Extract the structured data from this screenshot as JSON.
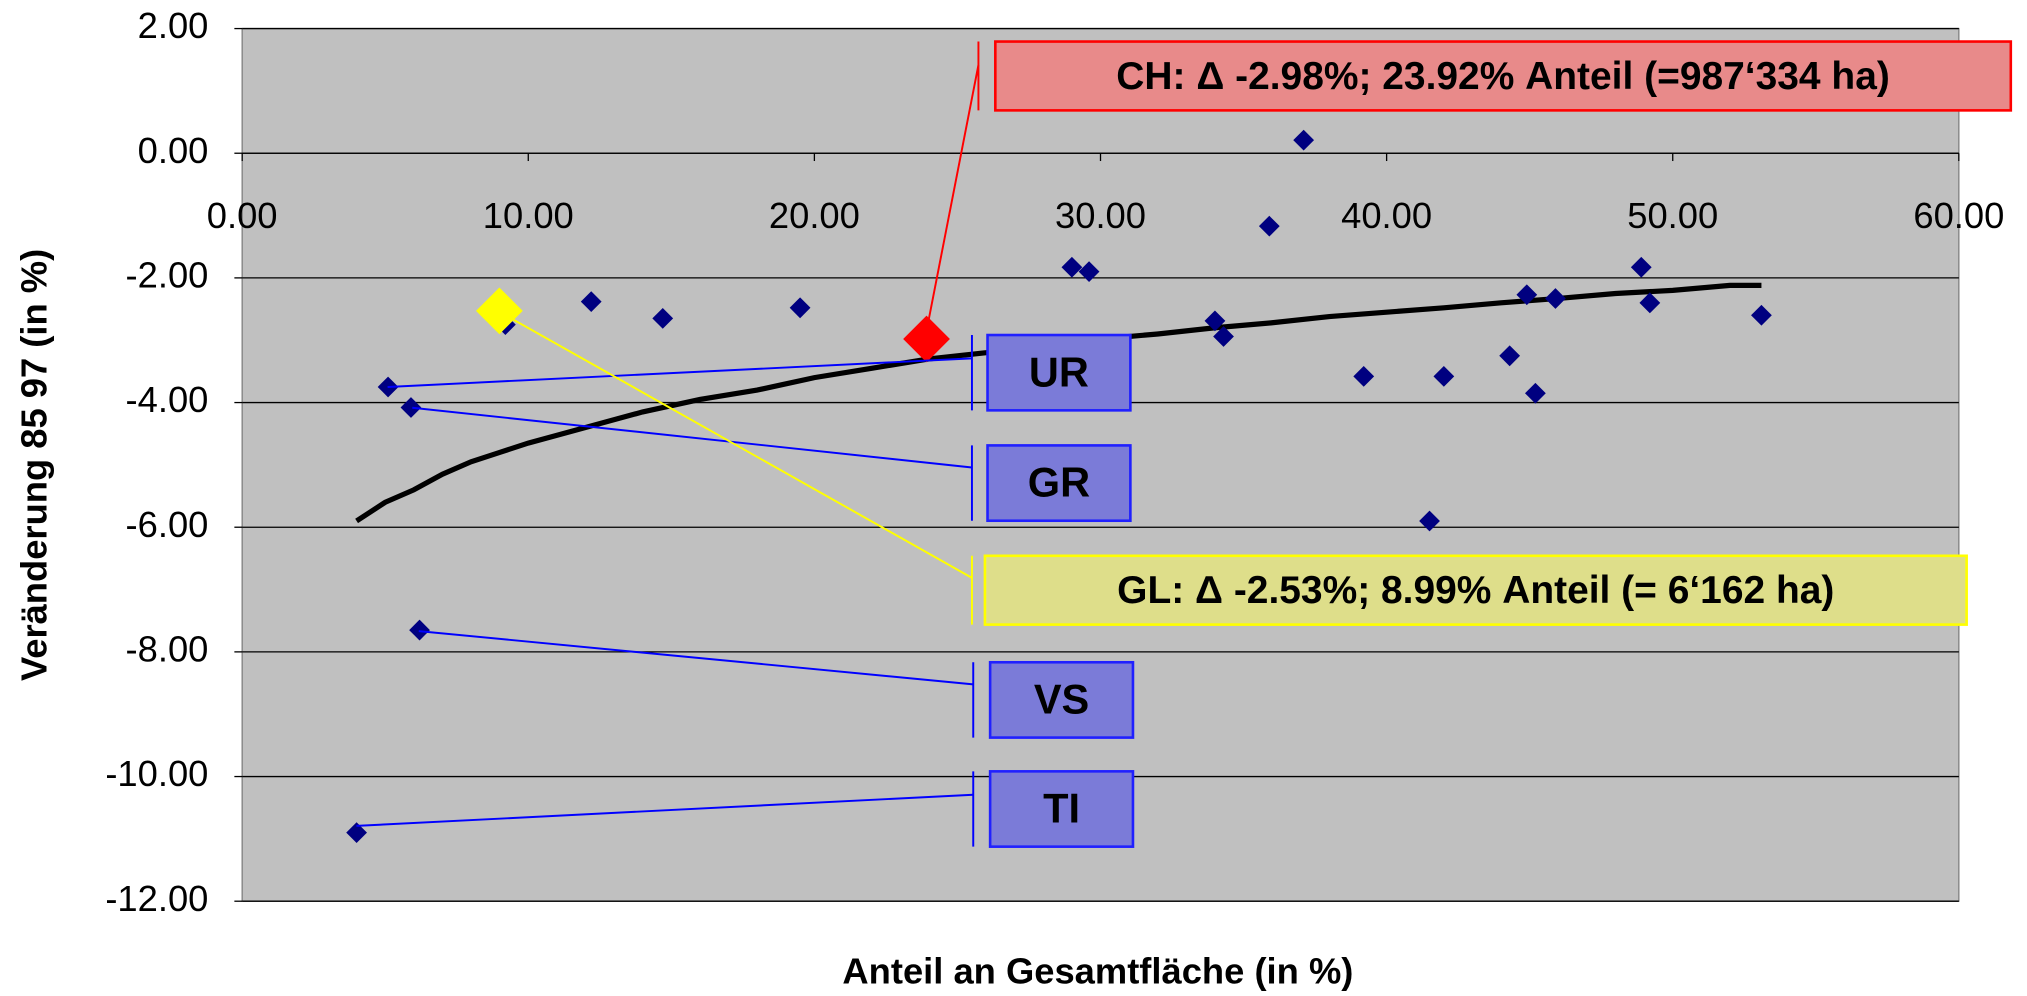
{
  "chart_data": {
    "type": "scatter",
    "x_label": "Anteil an Gesamtfläche (in %)",
    "y_label": "Veränderung 85 97 (in %)",
    "xlim": [
      0,
      60
    ],
    "ylim": [
      -12,
      2
    ],
    "xticks": [
      {
        "value": 0,
        "label": "0.00"
      },
      {
        "value": 10,
        "label": "10.00"
      },
      {
        "value": 20,
        "label": "20.00"
      },
      {
        "value": 30,
        "label": "30.00"
      },
      {
        "value": 40,
        "label": "40.00"
      },
      {
        "value": 50,
        "label": "50.00"
      },
      {
        "value": 60,
        "label": "60.00"
      }
    ],
    "yticks": [
      {
        "value": 2,
        "label": "2.00"
      },
      {
        "value": 0,
        "label": "0.00"
      },
      {
        "value": -2,
        "label": "-2.00"
      },
      {
        "value": -4,
        "label": "-4.00"
      },
      {
        "value": -6,
        "label": "-6.00"
      },
      {
        "value": -8,
        "label": "-8.00"
      },
      {
        "value": -10,
        "label": "-10.00"
      },
      {
        "value": -12,
        "label": "-12.00"
      }
    ],
    "grid": true,
    "background": "#c0c0c0",
    "series": [
      {
        "mark": "line",
        "color": "#000000",
        "x": [
          4,
          5,
          6,
          7,
          8,
          9,
          10,
          12,
          14,
          16,
          18,
          20,
          22,
          24,
          26,
          28,
          30,
          32,
          34,
          36,
          38,
          40,
          42,
          44,
          46,
          48,
          50,
          52,
          53.1
        ],
        "values": [
          -5.9,
          -5.6,
          -5.4,
          -5.15,
          -4.95,
          -4.8,
          -4.65,
          -4.4,
          -4.15,
          -3.95,
          -3.8,
          -3.6,
          -3.45,
          -3.3,
          -3.2,
          -3.05,
          -2.98,
          -2.9,
          -2.8,
          -2.72,
          -2.62,
          -2.55,
          -2.48,
          -2.4,
          -2.33,
          -2.25,
          -2.2,
          -2.12,
          -2.12
        ]
      },
      {
        "mark": "diamond",
        "color": "#000080",
        "x": [
          4.0,
          5.1,
          5.9,
          6.2,
          9.2,
          12.2,
          14.7,
          19.5,
          29.0,
          29.6,
          34.0,
          34.3,
          35.9,
          37.1,
          39.2,
          41.5,
          42.0,
          44.3,
          44.9,
          45.2,
          45.9,
          48.9,
          49.2,
          53.1
        ],
        "values": [
          -10.9,
          -3.75,
          -4.08,
          -7.65,
          -2.75,
          -2.38,
          -2.65,
          -2.48,
          -1.83,
          -1.9,
          -2.69,
          -2.94,
          -1.17,
          0.21,
          -3.58,
          -5.9,
          -3.58,
          -3.25,
          -2.27,
          -3.85,
          -2.33,
          -1.83,
          -2.4,
          -2.6
        ]
      },
      {
        "mark": "big-diamond",
        "color": "#ffff00",
        "x": [
          8.99
        ],
        "values": [
          -2.53
        ]
      },
      {
        "mark": "big-diamond",
        "color": "#ff0000",
        "x": [
          23.92
        ],
        "values": [
          -2.98
        ]
      }
    ],
    "annotations": [
      "UR",
      "GR",
      "VS",
      "TI",
      "GL: Δ -2.53%; 8.99% Anteil (= 6‘162 ha)",
      "CH: Δ -2.98%; 23.92% Anteil (=987‘334 ha)"
    ]
  }
}
